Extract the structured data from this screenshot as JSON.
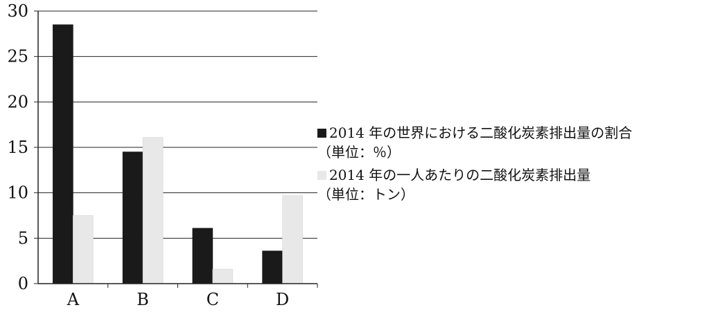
{
  "chart_data": {
    "type": "bar",
    "categories": [
      "A",
      "B",
      "C",
      "D"
    ],
    "yticks": [
      0,
      5,
      10,
      15,
      20,
      25,
      30
    ],
    "ylim": [
      0,
      30
    ],
    "grid": true,
    "legend_position": "right",
    "series": [
      {
        "name": "2014 年の世界における二酸化炭素排出量の割合",
        "unit": "（単位：％）",
        "color": "#1a1a1a",
        "values": [
          28.5,
          14.5,
          6.1,
          3.6
        ]
      },
      {
        "name": "2014 年の一人あたりの二酸化炭素排出量",
        "unit": "（単位：トン）",
        "color": "#e8e8e8",
        "values": [
          7.5,
          16.1,
          1.6,
          9.7
        ]
      }
    ]
  }
}
